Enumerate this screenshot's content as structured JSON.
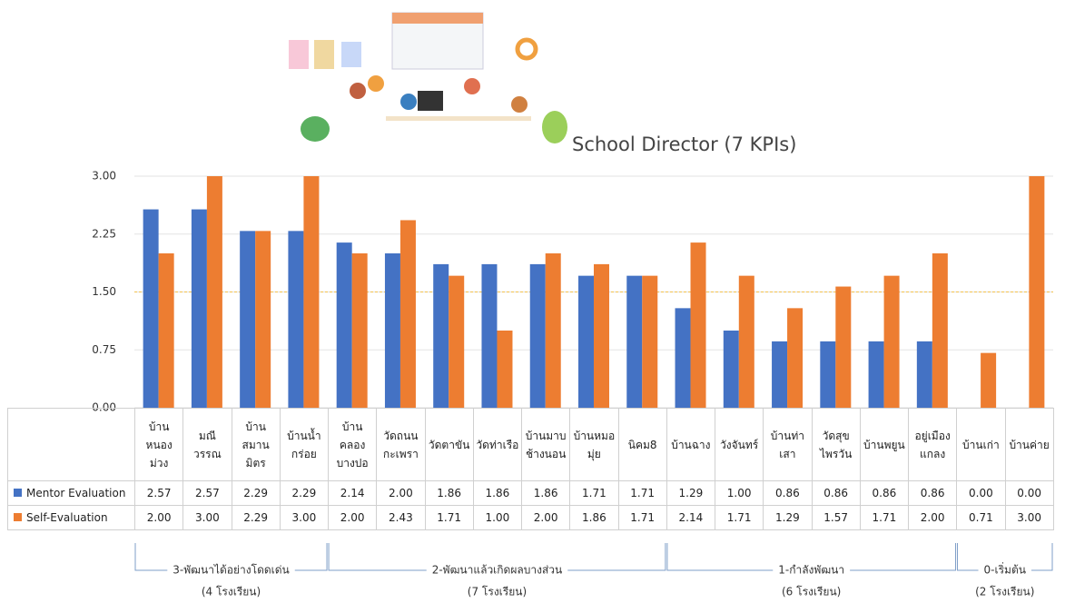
{
  "chart_data": {
    "type": "bar",
    "title": "School Director (7 KPIs)",
    "categories": [
      "บ้านหนองม่วง",
      "มณีวรรณ",
      "บ้านสมานมิตร",
      "บ้านน้ำกร่อย",
      "บ้านคลองบางปอ",
      "วัดถนนกะเพรา",
      "วัดตาขัน",
      "วัดท่าเรือ",
      "บ้านมาบช้างนอน",
      "บ้านหมอมุ่ย",
      "นิคม8",
      "บ้านฉาง",
      "วังจันทร์",
      "บ้านท่าเสา",
      "วัดสุขไพรวัน",
      "บ้านพยูน",
      "อยู่เมืองแกลง",
      "บ้านเก่า",
      "บ้านค่าย"
    ],
    "series": [
      {
        "name": "Mentor Evaluation",
        "color": "#4472c4",
        "values": [
          2.57,
          2.57,
          2.29,
          2.29,
          2.14,
          2.0,
          1.86,
          1.86,
          1.86,
          1.71,
          1.71,
          1.29,
          1.0,
          0.86,
          0.86,
          0.86,
          0.86,
          0.0,
          0.0
        ],
        "value_labels": [
          "2.57",
          "2.57",
          "2.29",
          "2.29",
          "2.14",
          "2.00",
          "1.86",
          "1.86",
          "1.86",
          "1.71",
          "1.71",
          "1.29",
          "1.00",
          "0.86",
          "0.86",
          "0.86",
          "0.86",
          "0.00",
          "0.00"
        ]
      },
      {
        "name": "Self-Evaluation",
        "color": "#ed7d31",
        "values": [
          2.0,
          3.0,
          2.29,
          3.0,
          2.0,
          2.43,
          1.71,
          1.0,
          2.0,
          1.86,
          1.71,
          2.14,
          1.71,
          1.29,
          1.57,
          1.71,
          2.0,
          0.71,
          3.0
        ],
        "value_labels": [
          "2.00",
          "3.00",
          "2.29",
          "3.00",
          "2.00",
          "2.43",
          "1.71",
          "1.00",
          "2.00",
          "1.86",
          "1.71",
          "2.14",
          "1.71",
          "1.29",
          "1.57",
          "1.71",
          "2.00",
          "0.71",
          "3.00"
        ]
      }
    ],
    "ylim": [
      0,
      3
    ],
    "yticks": [
      {
        "value": 0,
        "label": "0.00"
      },
      {
        "value": 0.75,
        "label": "0.75"
      },
      {
        "value": 1.5,
        "label": "1.50"
      },
      {
        "value": 2.25,
        "label": "2.25"
      },
      {
        "value": 3,
        "label": "3.00"
      }
    ],
    "grid": true,
    "reference_line": {
      "value": 1.5,
      "color": "#f2c14e"
    },
    "groups": [
      {
        "label": "3-พัฒนาได้อย่างโดดเด่น",
        "count": 4,
        "count_label": "(4 โรงเรียน)"
      },
      {
        "label": "2-พัฒนาแล้วเกิดผลบางส่วน",
        "count": 7,
        "count_label": "(7 โรงเรียน)"
      },
      {
        "label": "1-กำลังพัฒนา",
        "count": 6,
        "count_label": "(6 โรงเรียน)"
      },
      {
        "label": "0-เริ่มต้น",
        "count": 2,
        "count_label": "(2 โรงเรียน)"
      }
    ]
  }
}
